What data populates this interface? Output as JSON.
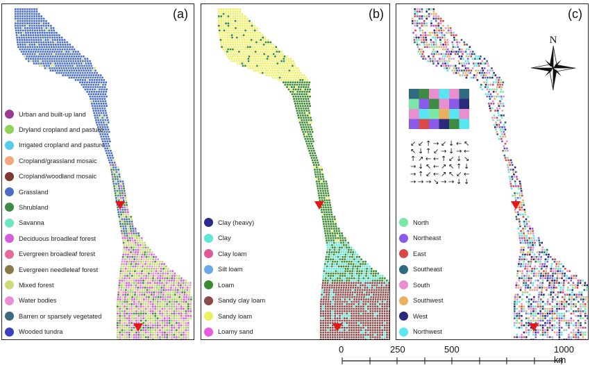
{
  "panels": [
    {
      "label": "(a)",
      "legend": [
        {
          "label": "Urban and built-up land",
          "color": "#9b3a8f"
        },
        {
          "label": "Dryland cropland and pasture",
          "color": "#8fd35a"
        },
        {
          "label": "Irrigated cropland and pasture",
          "color": "#54cde8"
        },
        {
          "label": "Cropland/grassland mosaic",
          "color": "#f4a77a"
        },
        {
          "label": "Cropland/woodland mosaic",
          "color": "#7a3a2e"
        },
        {
          "label": "Grassland",
          "color": "#4a6fc4"
        },
        {
          "label": "Shrubland",
          "color": "#3f8a45"
        },
        {
          "label": "Savanna",
          "color": "#6fe6c2"
        },
        {
          "label": "Deciduous broadleaf forest",
          "color": "#d35fd8"
        },
        {
          "label": "Evergreen broadleaf forest",
          "color": "#e56b9a"
        },
        {
          "label": "Evergreen needleleaf forest",
          "color": "#8a7a45"
        },
        {
          "label": "Mixed forest",
          "color": "#cfd97a"
        },
        {
          "label": "Water bodies",
          "color": "#e88fd8"
        },
        {
          "label": "Barren or sparsely vegetated",
          "color": "#3f6a80"
        },
        {
          "label": "Wooded tundra",
          "color": "#3a3fc4"
        }
      ]
    },
    {
      "label": "(b)",
      "legend": [
        {
          "label": "Clay (heavy)",
          "color": "#2a2a8a"
        },
        {
          "label": "Clay",
          "color": "#5fe8d8"
        },
        {
          "label": "Clay loam",
          "color": "#e05a98"
        },
        {
          "label": "Silt loam",
          "color": "#6aaae8"
        },
        {
          "label": "Loam",
          "color": "#3a8a30"
        },
        {
          "label": "Sandy clay loam",
          "color": "#8a4a4a"
        },
        {
          "label": "Sandy loam",
          "color": "#eef060"
        },
        {
          "label": "Loamy sand",
          "color": "#e85ae0"
        }
      ]
    },
    {
      "label": "(c)",
      "legend": [
        {
          "label": "North",
          "color": "#7ae6a8"
        },
        {
          "label": "Northeast",
          "color": "#8a5ae8"
        },
        {
          "label": "East",
          "color": "#d84a4a"
        },
        {
          "label": "Southeast",
          "color": "#2e6a80"
        },
        {
          "label": "South",
          "color": "#e88fd0"
        },
        {
          "label": "Southwest",
          "color": "#eab060"
        },
        {
          "label": "West",
          "color": "#2a2a7a"
        },
        {
          "label": "Northwest",
          "color": "#5ae6f0"
        }
      ],
      "compass_label": "N"
    }
  ],
  "scale": {
    "ticks": [
      "0",
      "250",
      "500",
      "1000 km"
    ]
  }
}
